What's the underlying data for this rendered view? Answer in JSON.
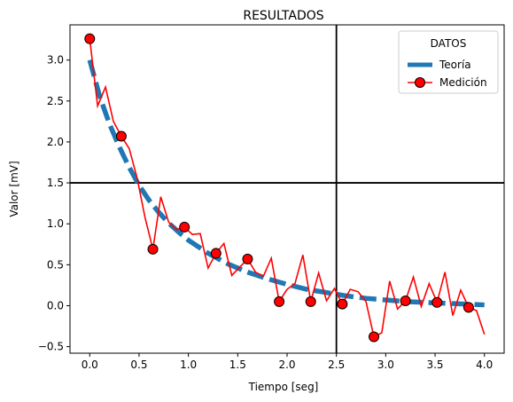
{
  "chart_data": {
    "type": "line",
    "title": "RESULTADOS",
    "xlabel": "Tiempo [seg]",
    "ylabel": "Valor [mV]",
    "xlim": [
      -0.2,
      4.2
    ],
    "ylim": [
      -0.58,
      3.43
    ],
    "xticks": [
      0.0,
      0.5,
      1.0,
      1.5,
      2.0,
      2.5,
      3.0,
      3.5,
      4.0
    ],
    "xtick_labels": [
      "0.0",
      "0.5",
      "1.0",
      "1.5",
      "2.0",
      "2.5",
      "3.0",
      "3.5",
      "4.0"
    ],
    "yticks": [
      -0.5,
      0.0,
      0.5,
      1.0,
      1.5,
      2.0,
      2.5,
      3.0
    ],
    "ytick_labels": [
      "−0.5",
      "0.0",
      "0.5",
      "1.0",
      "1.5",
      "2.0",
      "2.5",
      "3.0"
    ],
    "grid": false,
    "reference_lines": {
      "vertical_x": 2.5,
      "horizontal_y": 1.5
    },
    "legend": {
      "title": "DATOS",
      "placement": "top-right",
      "entries": [
        "Teoría",
        "Medición"
      ]
    },
    "series": [
      {
        "name": "Teoría",
        "style": "dashed",
        "color": "#1f77b4",
        "x": [
          0.0,
          0.1,
          0.2,
          0.3,
          0.4,
          0.5,
          0.6,
          0.7,
          0.8,
          0.9,
          1.0,
          1.2,
          1.4,
          1.6,
          1.8,
          2.0,
          2.2,
          2.4,
          2.6,
          2.8,
          3.0,
          3.2,
          3.4,
          3.6,
          3.8,
          4.0
        ],
        "y": [
          3.0,
          2.56,
          2.22,
          1.94,
          1.69,
          1.47,
          1.29,
          1.14,
          1.01,
          0.9,
          0.8,
          0.64,
          0.51,
          0.41,
          0.33,
          0.26,
          0.2,
          0.16,
          0.12,
          0.09,
          0.07,
          0.05,
          0.04,
          0.03,
          0.02,
          0.01
        ]
      },
      {
        "name": "Medición",
        "color": "#ff0000",
        "marker_color": "#ff0000",
        "x": [
          0.0,
          0.08,
          0.16,
          0.24,
          0.32,
          0.4,
          0.48,
          0.56,
          0.64,
          0.72,
          0.8,
          0.88,
          0.96,
          1.04,
          1.12,
          1.2,
          1.28,
          1.36,
          1.44,
          1.52,
          1.6,
          1.68,
          1.76,
          1.84,
          1.92,
          2.0,
          2.08,
          2.16,
          2.24,
          2.32,
          2.4,
          2.48,
          2.56,
          2.64,
          2.72,
          2.8,
          2.88,
          2.96,
          3.04,
          3.12,
          3.2,
          3.28,
          3.36,
          3.44,
          3.52,
          3.6,
          3.68,
          3.76,
          3.84,
          3.92,
          4.0
        ],
        "y": [
          3.26,
          2.44,
          2.67,
          2.25,
          2.07,
          1.92,
          1.56,
          1.08,
          0.69,
          1.33,
          1.02,
          0.93,
          0.96,
          0.87,
          0.88,
          0.46,
          0.64,
          0.76,
          0.37,
          0.47,
          0.57,
          0.41,
          0.36,
          0.58,
          0.05,
          0.2,
          0.27,
          0.62,
          0.05,
          0.4,
          0.06,
          0.21,
          0.02,
          0.2,
          0.17,
          0.05,
          -0.38,
          -0.33,
          0.3,
          -0.04,
          0.06,
          0.35,
          -0.01,
          0.27,
          0.04,
          0.41,
          -0.12,
          0.19,
          -0.02,
          -0.06,
          -0.35
        ],
        "marker_indices": [
          0,
          4,
          8,
          12,
          16,
          20,
          24,
          28,
          32,
          36,
          40,
          44,
          48
        ]
      }
    ]
  }
}
